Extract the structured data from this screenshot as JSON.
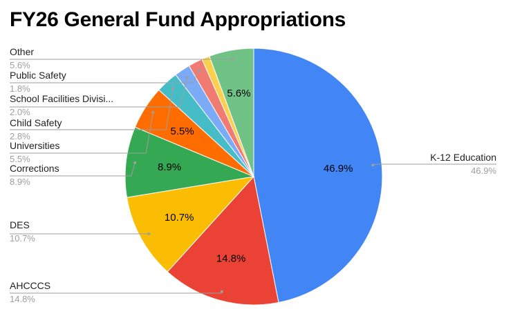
{
  "chart_data": {
    "type": "pie",
    "title": "FY26 General Fund Appropriations",
    "slices": [
      {
        "name": "K-12 Education",
        "value": 46.9,
        "label": "46.9%",
        "color": "#4285f4"
      },
      {
        "name": "AHCCCS",
        "value": 14.8,
        "label": "14.8%",
        "color": "#ea4335"
      },
      {
        "name": "DES",
        "value": 10.7,
        "label": "10.7%",
        "color": "#fbbc04"
      },
      {
        "name": "Corrections",
        "value": 8.9,
        "label": "8.9%",
        "color": "#34a853"
      },
      {
        "name": "Universities",
        "value": 5.5,
        "label": "5.5%",
        "color": "#ff6d01"
      },
      {
        "name": "Child Safety",
        "value": 2.8,
        "label": "2.8%",
        "color": "#46bdc6"
      },
      {
        "name": "School Facilities Divisi...",
        "value": 2.0,
        "label": "2.0%",
        "color": "#7baaf7"
      },
      {
        "name": "Public Safety",
        "value": 1.8,
        "label": "1.8%",
        "color": "#f07b72"
      },
      {
        "name": "",
        "value": 1.0,
        "label": "",
        "color": "#fcd04f"
      },
      {
        "name": "Other",
        "value": 5.6,
        "label": "5.6%",
        "color": "#71c287"
      }
    ],
    "inside_labels": [
      "46.9%",
      "14.8%",
      "10.7%",
      "8.9%",
      "5.5%",
      "5.6%"
    ],
    "legend_position": "external callout labels"
  }
}
